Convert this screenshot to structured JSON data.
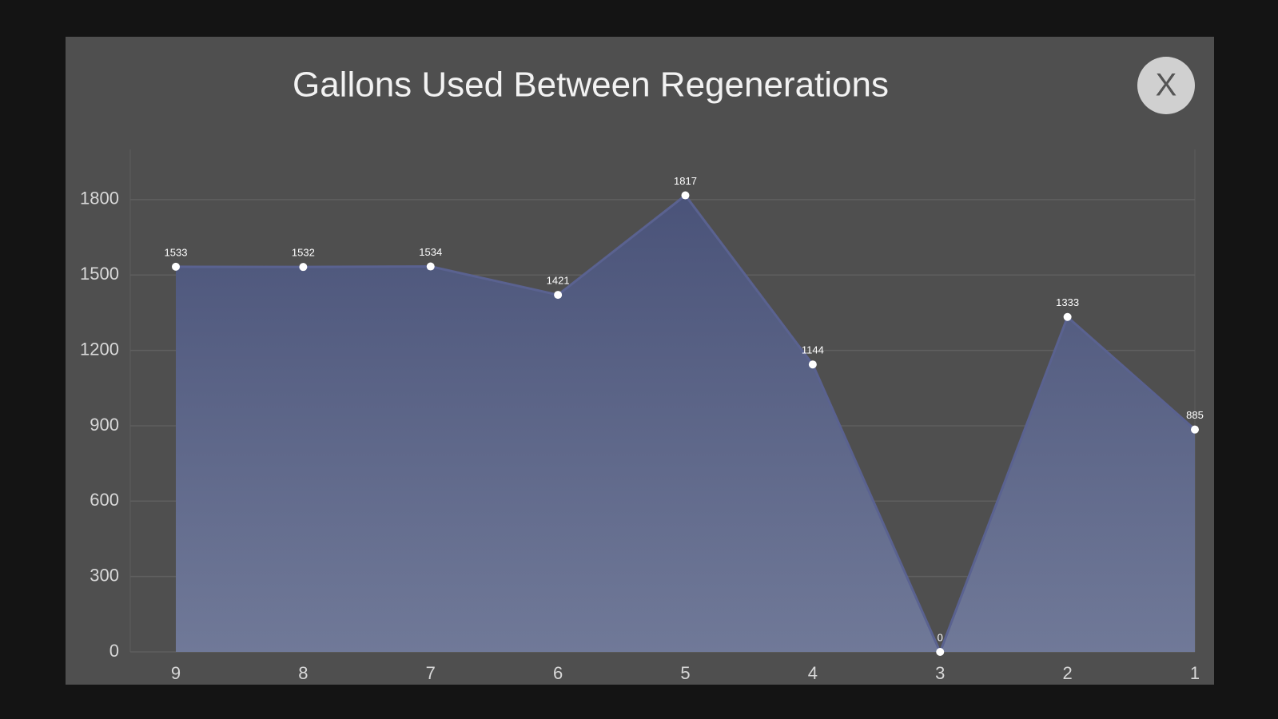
{
  "chart_data": {
    "type": "area",
    "title": "Gallons Used Between Regenerations",
    "categories": [
      "9",
      "8",
      "7",
      "6",
      "5",
      "4",
      "3",
      "2",
      "1"
    ],
    "values": [
      1533,
      1532,
      1534,
      1421,
      1817,
      1144,
      0,
      1333,
      885
    ],
    "color": "#5a6290",
    "ylim": [
      0,
      2000
    ],
    "yticks": [
      0,
      300,
      600,
      900,
      1200,
      1500,
      1800
    ],
    "grid": true
  },
  "close_button": {
    "label": "X"
  }
}
